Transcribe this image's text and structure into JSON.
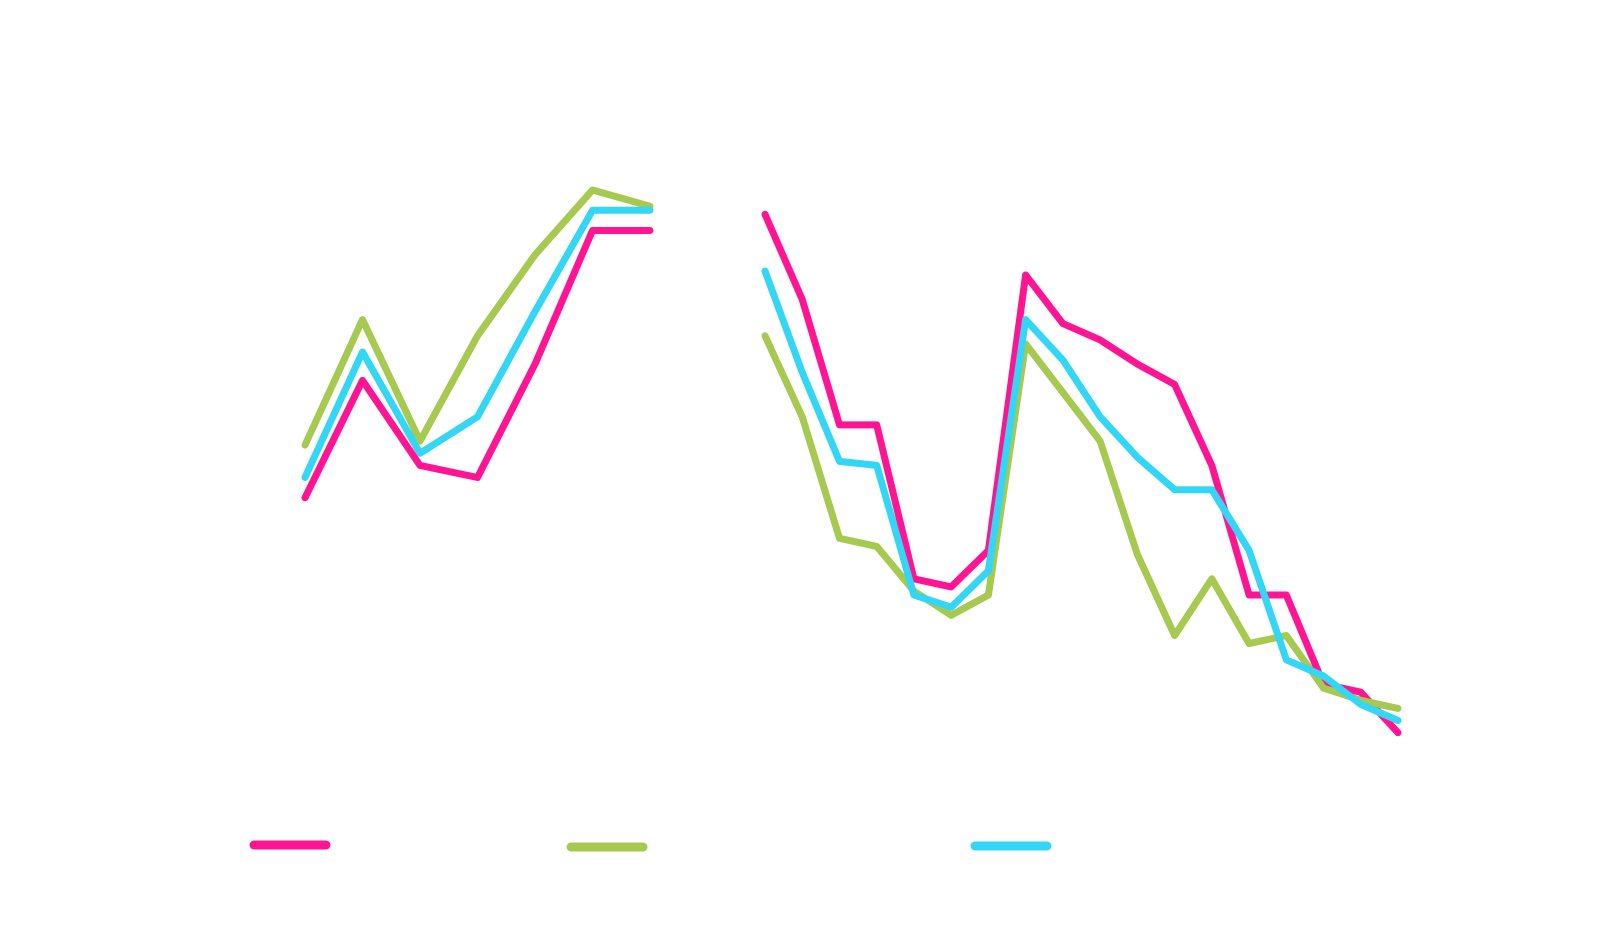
{
  "chart_data": {
    "type": "line",
    "title": "",
    "xlabel": "",
    "ylabel": "",
    "grid": false,
    "legend_placement": "bottom",
    "colors": {
      "series_a": "#ff1493",
      "series_b": "#a6c94f",
      "series_c": "#33d6f5"
    },
    "panels": [
      {
        "x": [
          1,
          2,
          3,
          4,
          5,
          6,
          7
        ],
        "series": [
          {
            "color": "#ff1493",
            "values": [
              0.62,
              0.765,
              0.66,
              0.645,
              0.785,
              0.95,
              0.95
            ]
          },
          {
            "color": "#a6c94f",
            "values": [
              0.685,
              0.84,
              0.69,
              0.82,
              0.92,
              1.0,
              0.98
            ]
          },
          {
            "color": "#33d6f5",
            "values": [
              0.645,
              0.8,
              0.675,
              0.72,
              0.85,
              0.975,
              0.975
            ]
          }
        ]
      },
      {
        "x": [
          1,
          2,
          3,
          4,
          5,
          6,
          7,
          8,
          9,
          10,
          11,
          12,
          13,
          14,
          15,
          16,
          17,
          18
        ],
        "series": [
          {
            "color": "#ff1493",
            "values": [
              0.97,
              0.865,
              0.71,
              0.71,
              0.52,
              0.51,
              0.555,
              0.895,
              0.835,
              0.815,
              0.785,
              0.76,
              0.66,
              0.5,
              0.5,
              0.39,
              0.38,
              0.33
            ]
          },
          {
            "color": "#a6c94f",
            "values": [
              0.82,
              0.72,
              0.57,
              0.56,
              0.505,
              0.475,
              0.5,
              0.81,
              0.75,
              0.69,
              0.55,
              0.45,
              0.52,
              0.44,
              0.45,
              0.385,
              0.37,
              0.36
            ]
          },
          {
            "color": "#33d6f5",
            "values": [
              0.9,
              0.775,
              0.665,
              0.66,
              0.5,
              0.485,
              0.53,
              0.84,
              0.79,
              0.72,
              0.67,
              0.63,
              0.63,
              0.555,
              0.42,
              0.4,
              0.365,
              0.345
            ]
          }
        ]
      }
    ],
    "legend": [
      {
        "color": "#ff1493",
        "label": ""
      },
      {
        "color": "#a6c94f",
        "label": ""
      },
      {
        "color": "#33d6f5",
        "label": ""
      }
    ]
  }
}
